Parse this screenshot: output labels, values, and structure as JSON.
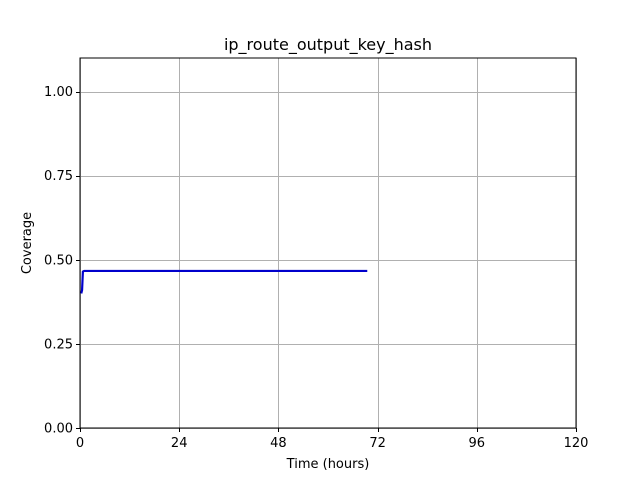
{
  "chart_data": {
    "type": "line",
    "title": "ip_route_output_key_hash",
    "xlabel": "Time (hours)",
    "ylabel": "Coverage",
    "xlim": [
      0,
      120
    ],
    "ylim": [
      0,
      1.1
    ],
    "xticks": [
      0,
      24,
      48,
      72,
      96,
      120
    ],
    "xtick_labels": [
      "0",
      "24",
      "48",
      "72",
      "96",
      "120"
    ],
    "yticks": [
      0,
      0.25,
      0.5,
      0.75,
      1.0
    ],
    "ytick_labels": [
      "0.00",
      "0.25",
      "0.50",
      "0.75",
      "1.00"
    ],
    "grid": true,
    "series": [
      {
        "color": "#0000cc",
        "x": [
          0.3,
          0.5,
          0.7,
          1.0,
          2,
          10,
          24,
          48,
          69.5
        ],
        "y": [
          0.4,
          0.41,
          0.465,
          0.467,
          0.467,
          0.467,
          0.467,
          0.467,
          0.467
        ]
      }
    ]
  }
}
